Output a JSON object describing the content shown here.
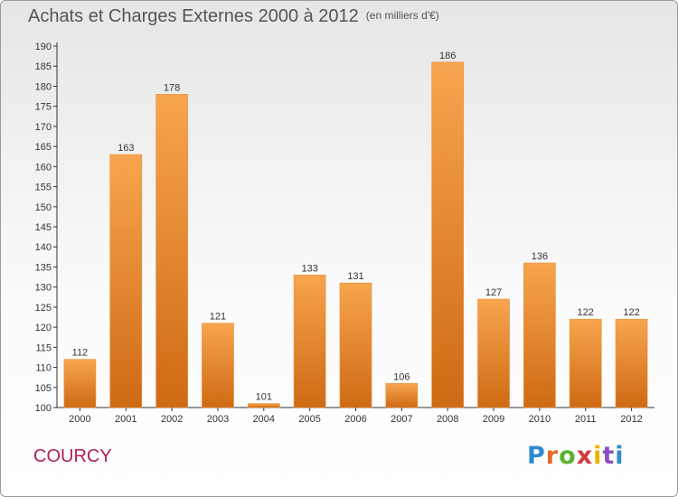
{
  "header": {
    "title": "Achats et Charges Externes 2000 à 2012",
    "unit": "(en milliers d'€)"
  },
  "footer": {
    "commune": "COURCY",
    "logo_letters": [
      "P",
      "r",
      "o",
      "x",
      "i",
      "t",
      "i"
    ]
  },
  "colors": {
    "bar_light": "#f7a54e",
    "bar_dark": "#cf6a14",
    "title": "#555555",
    "commune": "#b3204d"
  },
  "chart_data": {
    "type": "bar",
    "title": "Achats et Charges Externes 2000 à 2012",
    "subtitle": "(en milliers d'€)",
    "xlabel": "",
    "ylabel": "",
    "categories": [
      "2000",
      "2001",
      "2002",
      "2003",
      "2004",
      "2005",
      "2006",
      "2007",
      "2008",
      "2009",
      "2010",
      "2011",
      "2012"
    ],
    "values": [
      112,
      163,
      178,
      121,
      101,
      133,
      131,
      106,
      186,
      127,
      136,
      122,
      122
    ],
    "ylim": [
      100,
      190
    ],
    "yticks": [
      100,
      105,
      110,
      115,
      120,
      125,
      130,
      135,
      140,
      145,
      150,
      155,
      160,
      165,
      170,
      175,
      180,
      185,
      190
    ],
    "grid": false,
    "legend": "none"
  }
}
